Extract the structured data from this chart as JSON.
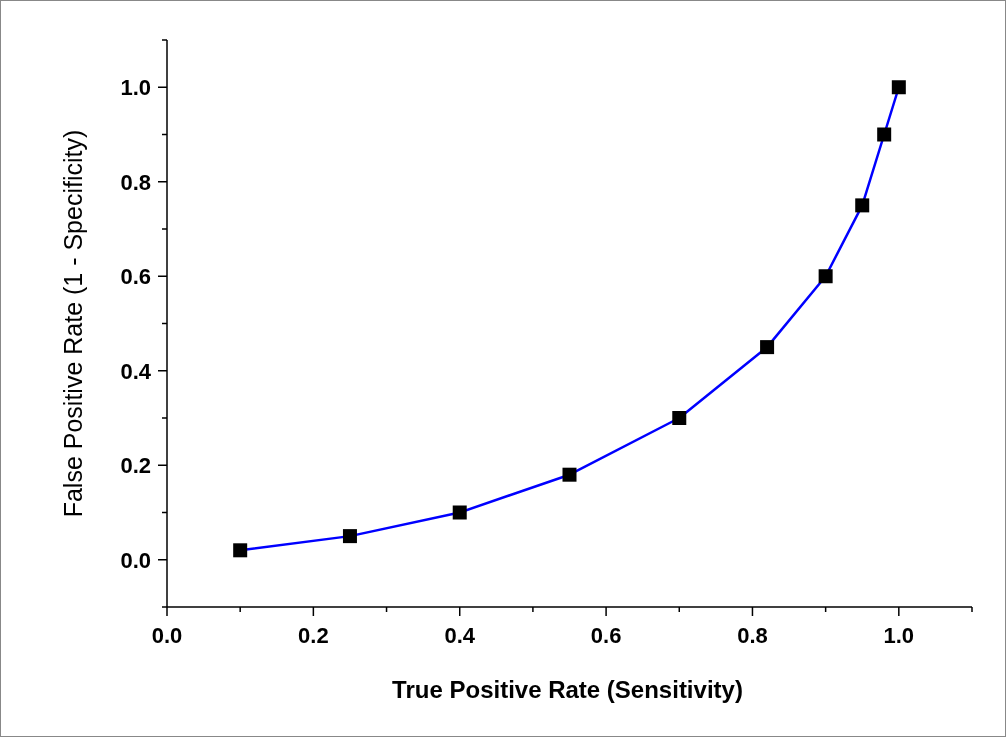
{
  "chart_data": {
    "type": "line",
    "xlabel": "True Positive Rate (Sensitivity)",
    "ylabel": "False Positive Rate (1 - Specificity)",
    "x": [
      0.1,
      0.25,
      0.4,
      0.55,
      0.7,
      0.82,
      0.9,
      0.95,
      0.98,
      1.0
    ],
    "series": [
      {
        "color": "#0000ff",
        "colors": [
          "#000000",
          "#000000",
          "#000000",
          "#000000",
          "#000000",
          "#000000",
          "#000000",
          "#000000",
          "#000000",
          "#000000"
        ],
        "values": [
          0.02,
          0.05,
          0.1,
          0.18,
          0.3,
          0.45,
          0.6,
          0.75,
          0.9,
          1.0
        ]
      }
    ],
    "xlim": [
      0,
      1.1
    ],
    "ylim": [
      -0.1,
      1.1
    ],
    "xticks": [
      {
        "value": 0,
        "label": "0.0"
      },
      {
        "value": 0.1,
        "label": null
      },
      {
        "value": 0.2,
        "label": "0.2"
      },
      {
        "value": 0.3,
        "label": null
      },
      {
        "value": 0.4,
        "label": "0.4"
      },
      {
        "value": 0.5,
        "label": null
      },
      {
        "value": 0.6,
        "label": "0.6"
      },
      {
        "value": 0.7,
        "label": null
      },
      {
        "value": 0.8,
        "label": "0.8"
      },
      {
        "value": 0.9,
        "label": null
      },
      {
        "value": 1,
        "label": "1.0"
      },
      {
        "value": 1.1,
        "label": null
      }
    ],
    "yticks": [
      {
        "value": -0.1,
        "label": null
      },
      {
        "value": 0,
        "label": "0.0"
      },
      {
        "value": 0.1,
        "label": null
      },
      {
        "value": 0.2,
        "label": "0.2"
      },
      {
        "value": 0.3,
        "label": null
      },
      {
        "value": 0.4,
        "label": "0.4"
      },
      {
        "value": 0.5,
        "label": null
      },
      {
        "value": 0.6,
        "label": "0.6"
      },
      {
        "value": 0.7,
        "label": null
      },
      {
        "value": 0.8,
        "label": "0.8"
      },
      {
        "value": 0.9,
        "label": null
      },
      {
        "value": 1,
        "label": "1.0"
      },
      {
        "value": 1.1,
        "label": null
      }
    ],
    "marker": "square",
    "line_style": "solid",
    "grid": false
  }
}
